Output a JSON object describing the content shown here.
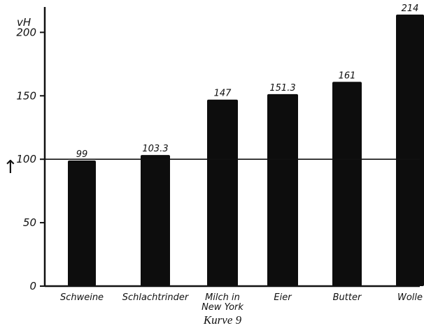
{
  "chart_data": {
    "type": "bar",
    "title": "",
    "caption": "Kurve 9",
    "ylabel": "vH",
    "ylim": [
      0,
      220
    ],
    "yticks": [
      "0",
      "50",
      "150",
      "200"
    ],
    "ytick_values": [
      0,
      50,
      150,
      200
    ],
    "hundred_tick_label": "100",
    "hundred_tick_value": 100,
    "reference_line": 100,
    "arrow_glyph": "↑",
    "categories": [
      "Schweine",
      "Schlachtrinder",
      "Milch in New York",
      "Eier",
      "Butter",
      "Wolle"
    ],
    "category_lines": [
      [
        "Schweine"
      ],
      [
        "Schlachtrinder"
      ],
      [
        "Milch in",
        "New York"
      ],
      [
        "Eier"
      ],
      [
        "Butter"
      ],
      [
        "Wolle"
      ]
    ],
    "values": [
      99,
      103.3,
      147,
      151.3,
      161,
      214
    ],
    "value_labels": [
      "99",
      "103.3",
      "147",
      "151.3",
      "161",
      "214"
    ],
    "bar_color": "#0d0d0d",
    "axis_color": "#111111",
    "grid": false
  }
}
